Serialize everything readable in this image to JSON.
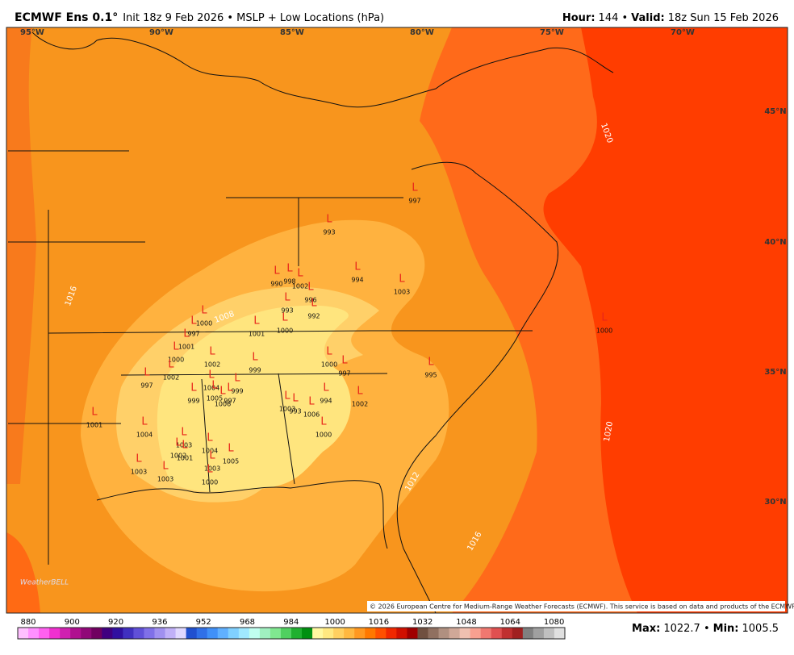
{
  "header": {
    "title": "ECMWF Ens 0.1°",
    "subtitle": "Init 18z 9 Feb 2026 • MSLP + Low Locations (hPa)",
    "hour_label": "Hour:",
    "hour": "144 •",
    "valid_label": "Valid:",
    "valid": "18z Sun 15 Feb 2026"
  },
  "longitudes": [
    "95°W",
    "90°W",
    "85°W",
    "80°W",
    "75°W",
    "70°W"
  ],
  "latitudes": [
    "45°N",
    "40°N",
    "35°N",
    "30°N"
  ],
  "contour_labels": [
    "1008",
    "1016",
    "1020",
    "1020",
    "1012",
    "1016"
  ],
  "lows": {
    "marker": "L",
    "values": [
      997,
      993,
      990,
      998,
      1002,
      994,
      1003,
      996,
      993,
      992,
      1000,
      997,
      1001,
      1000,
      1001,
      1000,
      1002,
      999,
      1000,
      997,
      995,
      1000,
      1002,
      997,
      1004,
      999,
      1005,
      997,
      999,
      1006,
      994,
      1002,
      1001,
      1004,
      1003,
      993,
      1006,
      1000,
      1003,
      1004,
      1002,
      1001,
      1005,
      1003,
      1003,
      1003,
      1000
    ]
  },
  "copyright": "© 2026 European Centre for Medium-Range Weather Forecasts (ECMWF). This service is based on data and products of the ECMWF.",
  "logo": "WeatherBELL",
  "colorbar": {
    "labels": [
      880,
      900,
      920,
      936,
      952,
      968,
      984,
      1000,
      1016,
      1032,
      1048,
      1064,
      1080
    ]
  },
  "footer": {
    "max_label": "Max:",
    "max": "1022.7 •",
    "min_label": "Min:",
    "min": "1005.5"
  }
}
